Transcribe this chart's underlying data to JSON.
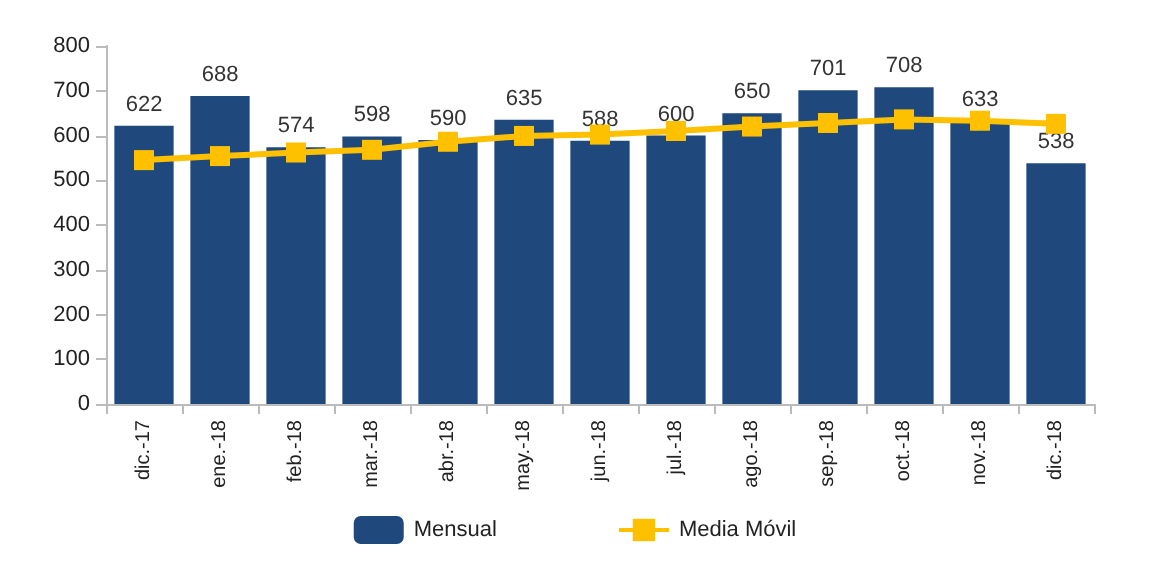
{
  "chart_data": {
    "type": "bar",
    "categories": [
      "dic.-17",
      "ene.-18",
      "feb.-18",
      "mar.-18",
      "abr.-18",
      "may.-18",
      "jun.-18",
      "jul.-18",
      "ago.-18",
      "sep.-18",
      "oct.-18",
      "nov.-18",
      "dic.-18"
    ],
    "series": [
      {
        "name": "Mensual",
        "color": "#1f497d",
        "values": [
          622,
          688,
          574,
          598,
          590,
          635,
          588,
          600,
          650,
          701,
          708,
          633,
          538
        ],
        "data_labels": true
      },
      {
        "name": "Media Móvil",
        "type": "line",
        "color": "#ffc000",
        "marker": "square",
        "values": [
          545,
          554,
          562,
          568,
          586,
          599,
          602,
          610,
          620,
          628,
          636,
          633,
          626
        ]
      }
    ],
    "ylim": [
      0,
      800
    ],
    "yticks": [
      0,
      100,
      200,
      300,
      400,
      500,
      600,
      700,
      800
    ],
    "grid": false,
    "legend": "bottom"
  }
}
